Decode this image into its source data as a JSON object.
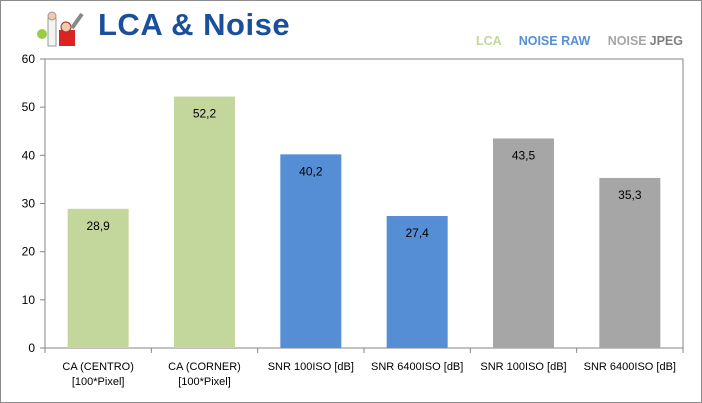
{
  "title": "LCA & Noise",
  "legend": [
    {
      "label": "LCA",
      "color": "#c3d69b"
    },
    {
      "label": "NOISE RAW",
      "color": "#558ed5"
    },
    {
      "label": "NOISE",
      "color": "#a6a6a6"
    },
    {
      "label": "JPEG",
      "color": "#7f7f7f"
    }
  ],
  "chart_data": {
    "type": "bar",
    "title": "LCA & Noise",
    "categories": [
      [
        "CA (CENTRO)",
        "[100*Pixel]"
      ],
      [
        "CA (CORNER)",
        "[100*Pixel]"
      ],
      [
        "SNR 100ISO [dB]"
      ],
      [
        "SNR 6400ISO [dB]"
      ],
      [
        "SNR 100ISO [dB]"
      ],
      [
        "SNR 6400ISO [dB]"
      ]
    ],
    "values": [
      28.9,
      52.2,
      40.2,
      27.4,
      43.5,
      35.3
    ],
    "value_labels": [
      "28,9",
      "52,2",
      "40,2",
      "27,4",
      "43,5",
      "35,3"
    ],
    "colors": [
      "#c3d69b",
      "#c3d69b",
      "#558ed5",
      "#558ed5",
      "#a6a6a6",
      "#a6a6a6"
    ],
    "ylim": [
      0,
      60
    ],
    "yticks": [
      0,
      10,
      20,
      30,
      40,
      50,
      60
    ],
    "grid": false,
    "xlabel": "",
    "ylabel": "",
    "legend_position": "top-right"
  }
}
